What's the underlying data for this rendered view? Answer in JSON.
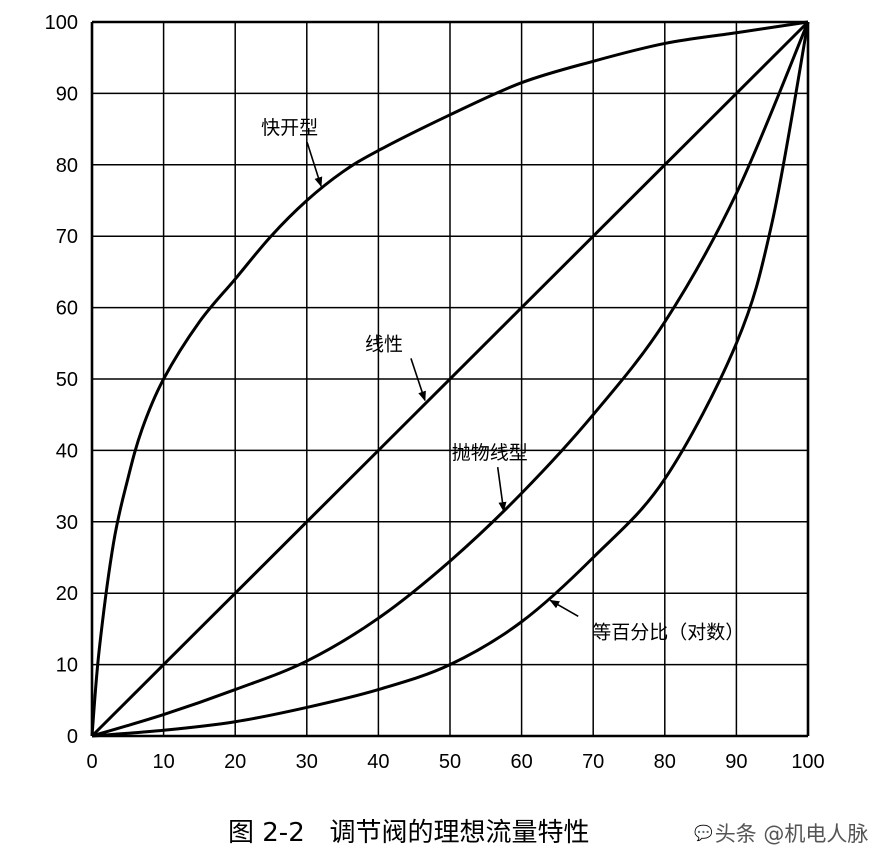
{
  "chart_data": {
    "type": "line",
    "title": "",
    "xlabel": "",
    "ylabel": "",
    "xlim": [
      0,
      100
    ],
    "ylim": [
      0,
      100
    ],
    "x_ticks": [
      "0",
      "10",
      "20",
      "30",
      "40",
      "50",
      "60",
      "70",
      "80",
      "90",
      "100"
    ],
    "y_ticks": [
      "0",
      "10",
      "20",
      "30",
      "40",
      "50",
      "60",
      "70",
      "80",
      "90",
      "100"
    ],
    "grid": true,
    "series": [
      {
        "name": "快开型",
        "x": [
          0,
          1,
          3,
          5,
          7,
          10,
          15,
          20,
          25,
          30,
          35,
          40,
          50,
          60,
          70,
          80,
          90,
          100
        ],
        "y": [
          0,
          12,
          27,
          36,
          43,
          50,
          58,
          64,
          70,
          75,
          79,
          82,
          87,
          91.5,
          94.5,
          97,
          98.5,
          100
        ]
      },
      {
        "name": "线性",
        "x": [
          0,
          100
        ],
        "y": [
          0,
          100
        ]
      },
      {
        "name": "抛物线型",
        "x": [
          0,
          10,
          20,
          30,
          40,
          50,
          60,
          70,
          80,
          90,
          100
        ],
        "y": [
          0,
          3,
          6.5,
          10.5,
          16.5,
          24.5,
          34,
          45,
          58,
          76,
          100
        ]
      },
      {
        "name": "等百分比（对数）",
        "x": [
          0,
          10,
          20,
          30,
          40,
          50,
          60,
          70,
          80,
          90,
          95,
          100
        ],
        "y": [
          0,
          0.8,
          2,
          4,
          6.5,
          10,
          16,
          25,
          36,
          55,
          72,
          100
        ]
      }
    ],
    "annotations": [
      {
        "text": "快开型",
        "x": 32,
        "y": 77
      },
      {
        "text": "线性",
        "x": 46.5,
        "y": 47
      },
      {
        "text": "抛物线型",
        "x": 57.5,
        "y": 31.5
      },
      {
        "text": "等百分比（对数）",
        "x": 64,
        "y": 19
      }
    ]
  },
  "caption": "图 2-2   调节阀的理想流量特性",
  "watermark": {
    "text": "头条 @机电人脉",
    "icon": "chat-bubble-icon"
  }
}
